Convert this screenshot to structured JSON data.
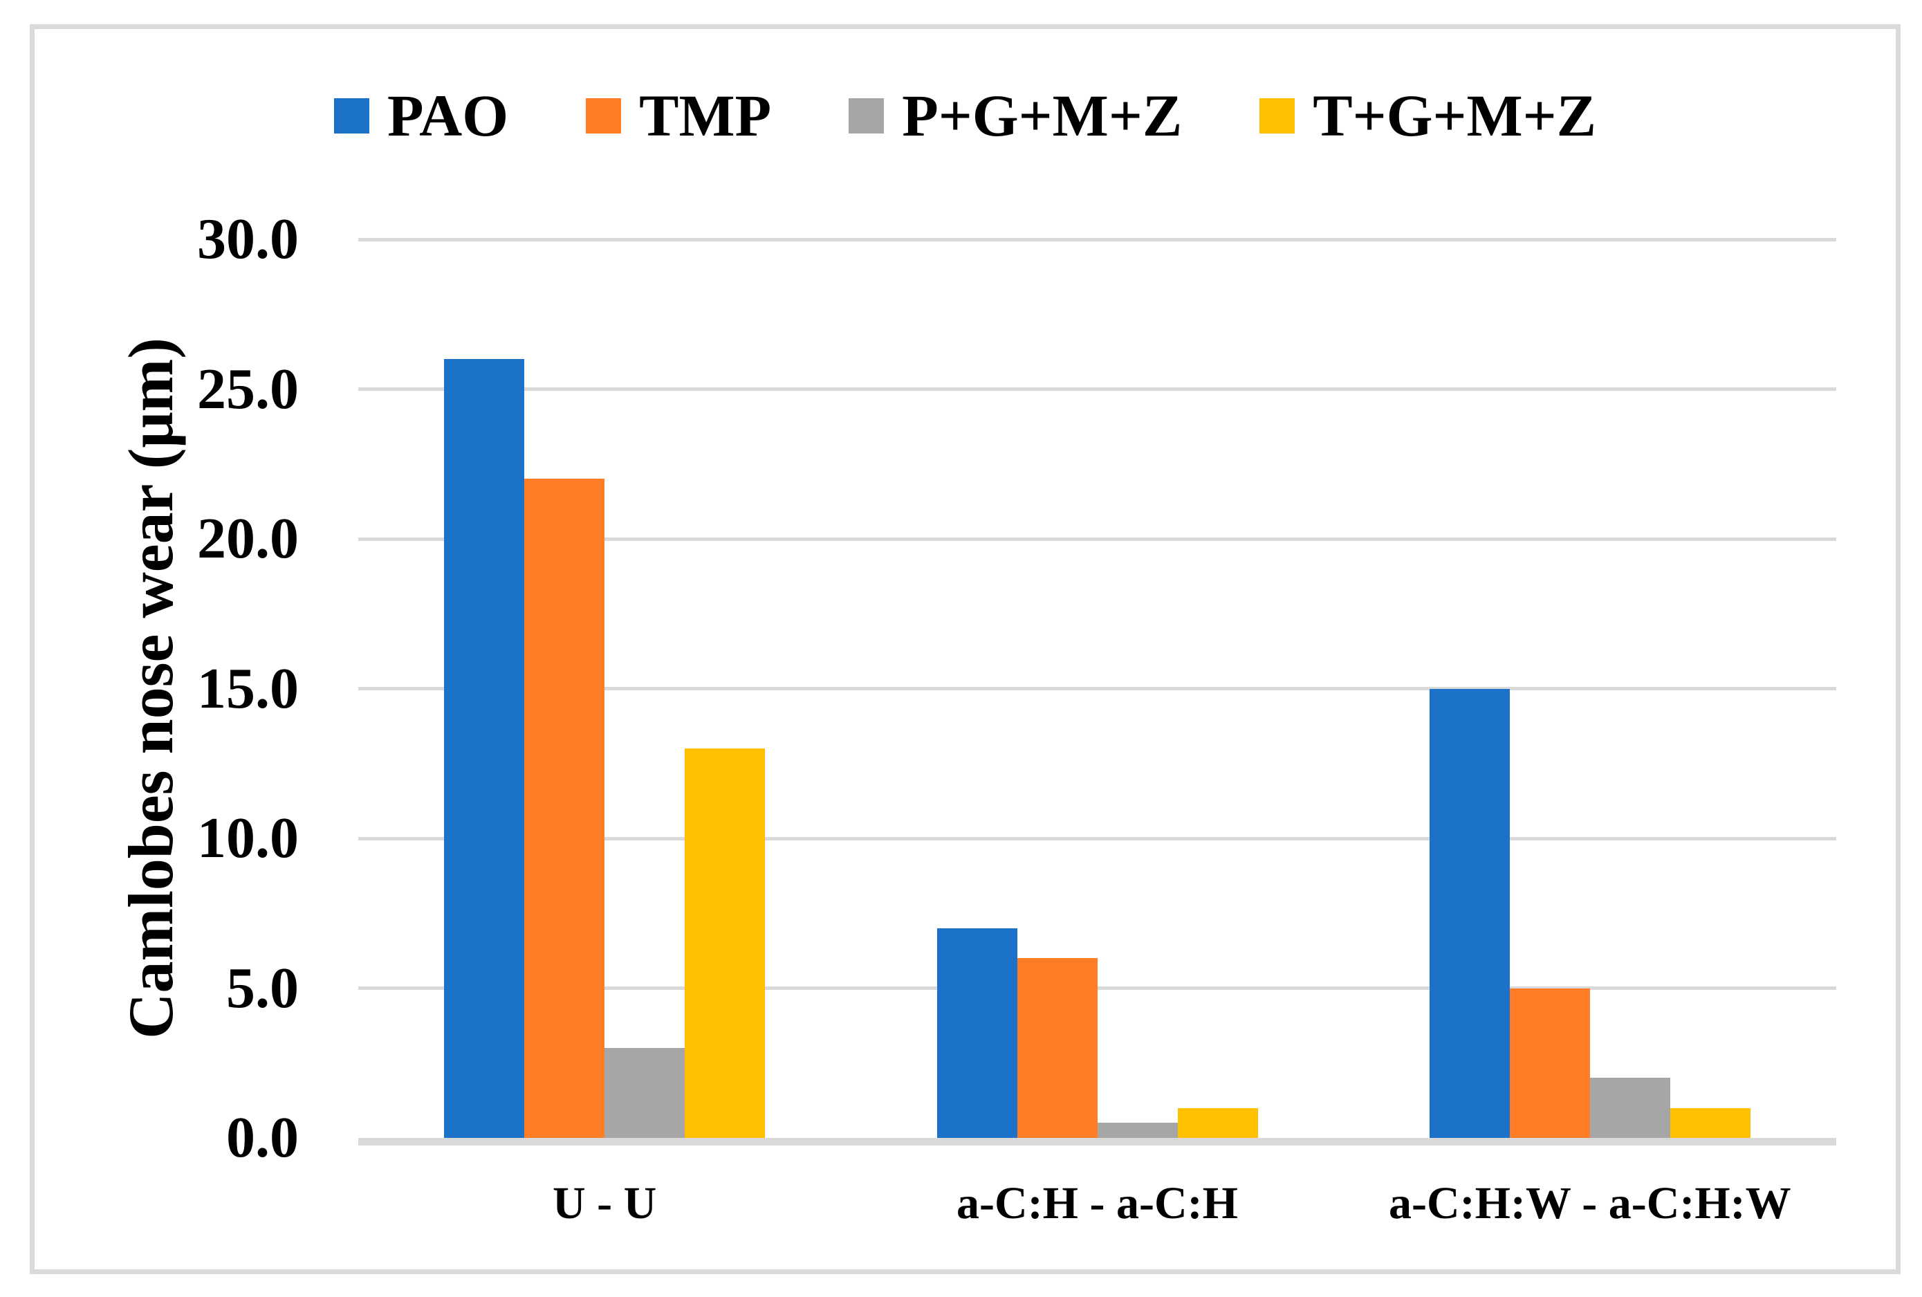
{
  "chart_data": {
    "type": "bar",
    "title": "",
    "xlabel": "",
    "ylabel": "Camlobes nose wear (μm)",
    "categories": [
      "U - U",
      "a-C:H - a-C:H",
      "a-C:H:W - a-C:H:W"
    ],
    "series": [
      {
        "name": "PAO",
        "color": "#1B72C8",
        "values": [
          26.0,
          7.0,
          15.0
        ]
      },
      {
        "name": "TMP",
        "color": "#FF7D27",
        "values": [
          22.0,
          6.0,
          5.0
        ]
      },
      {
        "name": "P+G+M+Z",
        "color": "#A6A6A6",
        "values": [
          3.0,
          0.5,
          2.0
        ]
      },
      {
        "name": "T+G+M+Z",
        "color": "#FFC000",
        "values": [
          13.0,
          1.0,
          1.0
        ]
      }
    ],
    "ylim": [
      0,
      30
    ],
    "ytick_step": 5,
    "ytick_labels": [
      "0.0",
      "5.0",
      "10.0",
      "15.0",
      "20.0",
      "25.0",
      "30.0"
    ],
    "grid": true,
    "legend_position": "top",
    "colors": {
      "gridline": "#D9D9D9",
      "axis_line": "#D9D9D9",
      "frame_border": "#DADADA",
      "text": "#000000",
      "background": "#FFFFFF"
    }
  }
}
